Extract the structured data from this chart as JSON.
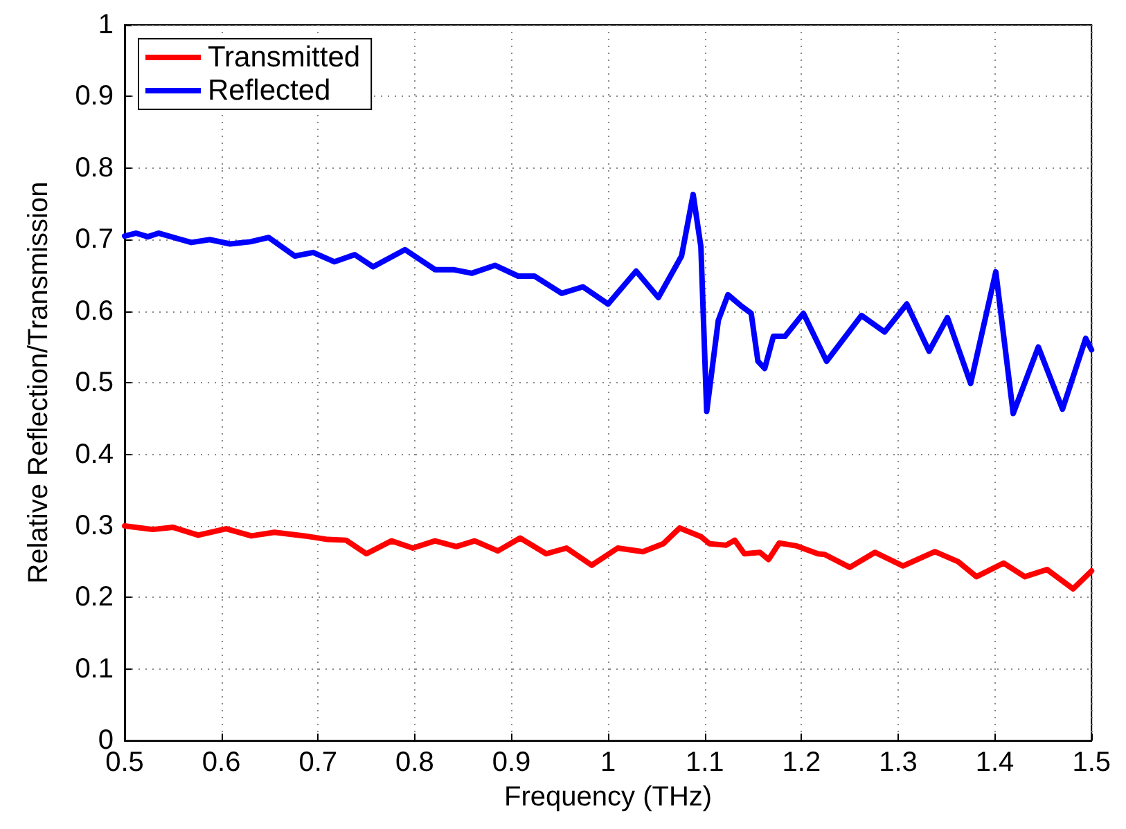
{
  "chart_data": {
    "type": "line",
    "xlabel": "Frequency (THz)",
    "ylabel": "Relative Reflection/Transmission",
    "xlim": [
      0.5,
      1.5
    ],
    "xticks": [
      0.5,
      0.6,
      0.7,
      0.8,
      0.9,
      1,
      1.1,
      1.2,
      1.3,
      1.4,
      1.5
    ],
    "ylim": [
      0,
      1
    ],
    "yticks": [
      0,
      0.1,
      0.2,
      0.3,
      0.4,
      0.5,
      0.6,
      0.7,
      0.8,
      0.9,
      1
    ],
    "grid": true,
    "legend": "top left",
    "marker": "none",
    "line_style": "solid",
    "series": [
      {
        "name": "Transmitted",
        "color": "#ff0000",
        "x": [
          0.5,
          0.529,
          0.55,
          0.576,
          0.605,
          0.631,
          0.655,
          0.686,
          0.71,
          0.729,
          0.75,
          0.776,
          0.798,
          0.821,
          0.843,
          0.862,
          0.886,
          0.909,
          0.936,
          0.957,
          0.983,
          1.01,
          1.036,
          1.057,
          1.074,
          1.096,
          1.105,
          1.122,
          1.131,
          1.141,
          1.157,
          1.166,
          1.177,
          1.195,
          1.217,
          1.224,
          1.25,
          1.276,
          1.305,
          1.338,
          1.362,
          1.381,
          1.409,
          1.431,
          1.454,
          1.481,
          1.5
        ],
        "values": [
          0.3,
          0.295,
          0.298,
          0.287,
          0.296,
          0.286,
          0.291,
          0.286,
          0.281,
          0.28,
          0.261,
          0.279,
          0.269,
          0.279,
          0.271,
          0.279,
          0.265,
          0.283,
          0.261,
          0.269,
          0.245,
          0.269,
          0.264,
          0.275,
          0.297,
          0.285,
          0.275,
          0.273,
          0.28,
          0.261,
          0.263,
          0.253,
          0.276,
          0.272,
          0.261,
          0.26,
          0.242,
          0.263,
          0.244,
          0.264,
          0.25,
          0.229,
          0.248,
          0.229,
          0.239,
          0.212,
          0.237
        ]
      },
      {
        "name": "Reflected",
        "color": "#0000ff",
        "x": [
          0.5,
          0.512,
          0.524,
          0.535,
          0.569,
          0.588,
          0.609,
          0.63,
          0.649,
          0.676,
          0.695,
          0.717,
          0.738,
          0.757,
          0.79,
          0.821,
          0.84,
          0.859,
          0.883,
          0.907,
          0.924,
          0.952,
          0.974,
          1.0,
          1.029,
          1.052,
          1.076,
          1.088,
          1.096,
          1.102,
          1.114,
          1.124,
          1.138,
          1.148,
          1.155,
          1.162,
          1.171,
          1.183,
          1.202,
          1.226,
          1.262,
          1.286,
          1.309,
          1.332,
          1.351,
          1.375,
          1.401,
          1.419,
          1.445,
          1.47,
          1.494,
          1.5
        ],
        "values": [
          0.705,
          0.709,
          0.704,
          0.709,
          0.696,
          0.7,
          0.694,
          0.697,
          0.703,
          0.677,
          0.682,
          0.669,
          0.679,
          0.662,
          0.686,
          0.658,
          0.658,
          0.653,
          0.664,
          0.649,
          0.649,
          0.625,
          0.634,
          0.61,
          0.656,
          0.619,
          0.677,
          0.763,
          0.69,
          0.46,
          0.587,
          0.623,
          0.607,
          0.597,
          0.53,
          0.52,
          0.565,
          0.565,
          0.597,
          0.53,
          0.594,
          0.571,
          0.61,
          0.544,
          0.591,
          0.499,
          0.655,
          0.457,
          0.55,
          0.463,
          0.562,
          0.546
        ]
      }
    ]
  }
}
